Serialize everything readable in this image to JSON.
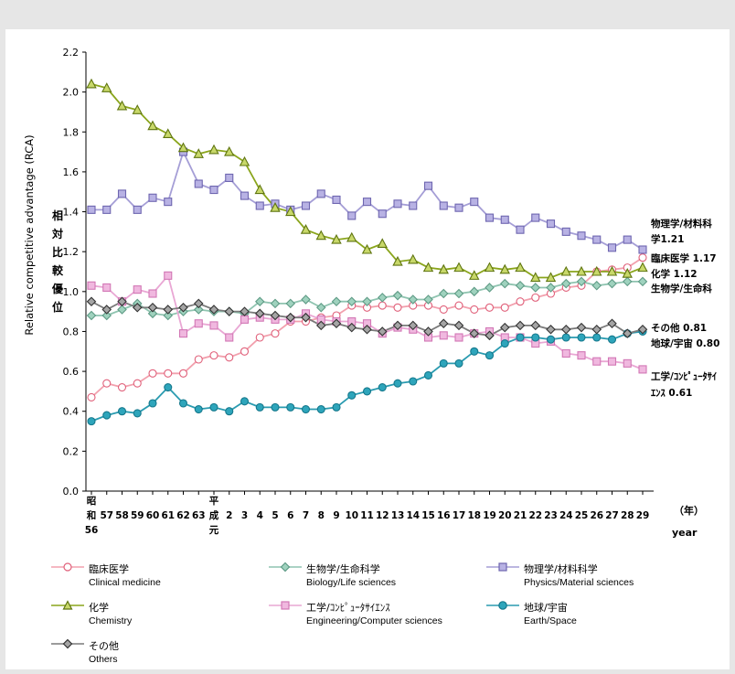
{
  "chart_data": {
    "type": "line",
    "ylabel": "Relative competitive advantage (RCA)",
    "ylabel_jp": [
      "相",
      "対",
      "比",
      "較",
      "優",
      "位"
    ],
    "ylim": [
      0,
      2.2
    ],
    "yticks": [
      "0.0",
      "0.2",
      "0.4",
      "0.6",
      "0.8",
      "1.0",
      "1.2",
      "1.4",
      "1.6",
      "1.8",
      "2.0",
      "2.2"
    ],
    "x_tick_labels": [
      "昭和56",
      "57",
      "58",
      "59",
      "60",
      "61",
      "62",
      "63",
      "平成元",
      "2",
      "3",
      "4",
      "5",
      "6",
      "7",
      "8",
      "9",
      "10",
      "11",
      "12",
      "13",
      "14",
      "15",
      "16",
      "17",
      "18",
      "19",
      "20",
      "21",
      "22",
      "23",
      "24",
      "25",
      "26",
      "27",
      "28",
      "29"
    ],
    "xlabel_jp": "（年）",
    "xlabel": "year",
    "series": [
      {
        "name": "臨床医学",
        "name_en": "Clinical medicine",
        "color": "#f2a0ad",
        "marker": "circle",
        "marker_edge": "#e0607a",
        "marker_fill": "#ffffff",
        "values": [
          0.47,
          0.54,
          0.52,
          0.54,
          0.59,
          0.59,
          0.59,
          0.66,
          0.68,
          0.67,
          0.7,
          0.77,
          0.79,
          0.85,
          0.85,
          0.87,
          0.88,
          0.93,
          0.92,
          0.93,
          0.92,
          0.93,
          0.93,
          0.91,
          0.93,
          0.91,
          0.92,
          0.92,
          0.95,
          0.97,
          0.99,
          1.02,
          1.03,
          1.1,
          1.11,
          1.12,
          1.17
        ],
        "end_label": "臨床医学 1.17"
      },
      {
        "name": "生物学/生命科学",
        "name_en": "Biology/Life sciences",
        "color": "#8fc4b0",
        "marker": "diamond",
        "marker_edge": "#5f9b86",
        "marker_fill": "#9fd2be",
        "values": [
          0.88,
          0.88,
          0.91,
          0.94,
          0.89,
          0.88,
          0.9,
          0.91,
          0.9,
          0.9,
          0.89,
          0.95,
          0.94,
          0.94,
          0.96,
          0.92,
          0.95,
          0.95,
          0.95,
          0.97,
          0.98,
          0.96,
          0.96,
          0.99,
          0.99,
          1.0,
          1.02,
          1.04,
          1.03,
          1.02,
          1.02,
          1.04,
          1.05,
          1.03,
          1.04,
          1.05,
          1.05
        ],
        "end_label": "生物学/生命科"
      },
      {
        "name": "物理学/材料科学",
        "name_en": "Physics/Material sciences",
        "color": "#a59ed6",
        "marker": "square",
        "marker_edge": "#6e66b0",
        "marker_fill": "#b8b2e4",
        "values": [
          1.41,
          1.41,
          1.49,
          1.41,
          1.47,
          1.45,
          1.7,
          1.54,
          1.51,
          1.57,
          1.48,
          1.43,
          1.44,
          1.41,
          1.43,
          1.49,
          1.46,
          1.38,
          1.45,
          1.39,
          1.44,
          1.43,
          1.53,
          1.43,
          1.42,
          1.45,
          1.37,
          1.36,
          1.31,
          1.37,
          1.34,
          1.3,
          1.28,
          1.26,
          1.22,
          1.26,
          1.21
        ],
        "end_label": "物理学/材料科学1.21"
      },
      {
        "name": "化学",
        "name_en": "Chemistry",
        "color": "#8aa51c",
        "marker": "triangle",
        "marker_edge": "#5f7510",
        "marker_fill": "#c8d86a",
        "values": [
          2.04,
          2.02,
          1.93,
          1.91,
          1.83,
          1.79,
          1.72,
          1.69,
          1.71,
          1.7,
          1.65,
          1.51,
          1.42,
          1.4,
          1.31,
          1.28,
          1.26,
          1.27,
          1.21,
          1.24,
          1.15,
          1.16,
          1.12,
          1.11,
          1.12,
          1.08,
          1.12,
          1.11,
          1.12,
          1.07,
          1.07,
          1.1,
          1.1,
          1.1,
          1.1,
          1.09,
          1.12
        ],
        "end_label": "化学 1.12"
      },
      {
        "name": "工学/ｺﾝﾋﾟｭｰﾀｻｲｴﾝｽ",
        "name_en": "Engineering/Computer sciences",
        "color": "#e9a7d4",
        "marker": "square",
        "marker_edge": "#d277b5",
        "marker_fill": "#f0b8df",
        "values": [
          1.03,
          1.02,
          0.95,
          1.01,
          0.99,
          1.08,
          0.79,
          0.84,
          0.83,
          0.77,
          0.86,
          0.87,
          0.86,
          0.86,
          0.89,
          0.86,
          0.85,
          0.85,
          0.84,
          0.79,
          0.82,
          0.81,
          0.77,
          0.78,
          0.77,
          0.79,
          0.8,
          0.77,
          0.77,
          0.74,
          0.75,
          0.69,
          0.68,
          0.65,
          0.65,
          0.64,
          0.61
        ],
        "end_label": "工学/ｺﾝﾋﾟｭｰﾀｻｲｴﾝｽ 0.61"
      },
      {
        "name": "地球/宇宙",
        "name_en": "Earth/Space",
        "color": "#2a9bb0",
        "marker": "circle",
        "marker_edge": "#15788c",
        "marker_fill": "#2ea5bb",
        "values": [
          0.35,
          0.38,
          0.4,
          0.39,
          0.44,
          0.52,
          0.44,
          0.41,
          0.42,
          0.4,
          0.45,
          0.42,
          0.42,
          0.42,
          0.41,
          0.41,
          0.42,
          0.48,
          0.5,
          0.52,
          0.54,
          0.55,
          0.58,
          0.64,
          0.64,
          0.7,
          0.68,
          0.74,
          0.77,
          0.77,
          0.76,
          0.77,
          0.77,
          0.77,
          0.76,
          0.79,
          0.8
        ],
        "end_label": "地球/宇宙 0.80"
      },
      {
        "name": "その他",
        "name_en": "Others",
        "color": "#7a7a7a",
        "marker": "diamond",
        "marker_edge": "#333333",
        "marker_fill": "#a5a5a5",
        "values": [
          0.95,
          0.91,
          0.95,
          0.92,
          0.92,
          0.91,
          0.92,
          0.94,
          0.91,
          0.9,
          0.9,
          0.89,
          0.88,
          0.87,
          0.87,
          0.83,
          0.84,
          0.82,
          0.81,
          0.8,
          0.83,
          0.83,
          0.8,
          0.84,
          0.83,
          0.79,
          0.78,
          0.82,
          0.83,
          0.83,
          0.81,
          0.81,
          0.82,
          0.81,
          0.84,
          0.79,
          0.81
        ],
        "end_label": "その他 0.81"
      }
    ],
    "grid": false,
    "legend_position": "bottom"
  }
}
